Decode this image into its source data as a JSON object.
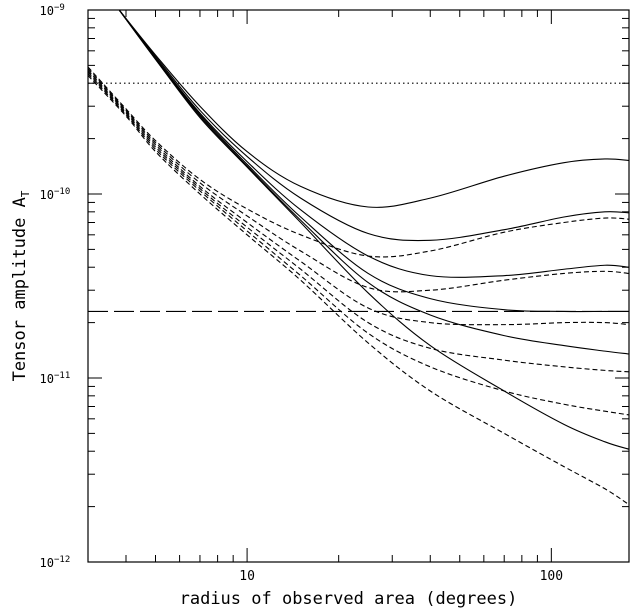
{
  "chart_data": {
    "type": "line",
    "title": "",
    "xlabel": "radius of observed area (degrees)",
    "ylabel": "Tensor amplitude A",
    "ylabel_subscript": "T",
    "xscale": "log",
    "yscale": "log",
    "xlim": [
      3,
      180
    ],
    "ylim": [
      1e-12,
      1e-09
    ],
    "grid": false,
    "legend": "none",
    "x_ticks": [
      {
        "value": 10,
        "label": "10"
      },
      {
        "value": 100,
        "label": "100"
      }
    ],
    "y_ticks": [
      {
        "value": 1e-12,
        "base": "10",
        "exp": "−12"
      },
      {
        "value": 1e-11,
        "base": "10",
        "exp": "−11"
      },
      {
        "value": 1e-10,
        "base": "10",
        "exp": "−10"
      },
      {
        "value": 1e-09,
        "base": "10",
        "exp": "−9"
      }
    ],
    "reference_lines": [
      {
        "style": "dotted",
        "y": 4e-10
      },
      {
        "style": "long-dashed",
        "y": 2.3e-11
      }
    ],
    "series": [
      {
        "style": "solid",
        "x": [
          3.8,
          5,
          7,
          10,
          15,
          25,
          40,
          70,
          110,
          150,
          180
        ],
        "y": [
          1e-09,
          5.7e-10,
          3e-10,
          1.7e-10,
          1.1e-10,
          8.5e-11,
          9.5e-11,
          1.25e-10,
          1.48e-10,
          1.55e-10,
          1.52e-10
        ]
      },
      {
        "style": "solid",
        "x": [
          3.8,
          5,
          7,
          10,
          15,
          25,
          40,
          70,
          110,
          150,
          180
        ],
        "y": [
          1e-09,
          5.6e-10,
          2.85e-10,
          1.6e-10,
          9.5e-11,
          6.1e-11,
          5.6e-11,
          6.4e-11,
          7.5e-11,
          8e-11,
          7.9e-11
        ]
      },
      {
        "style": "solid",
        "x": [
          3.8,
          5,
          7,
          10,
          15,
          25,
          40,
          70,
          110,
          150,
          180
        ],
        "y": [
          1e-09,
          5.5e-10,
          2.75e-10,
          1.5e-10,
          8.2e-11,
          4.6e-11,
          3.6e-11,
          3.6e-11,
          3.9e-11,
          4.1e-11,
          4e-11
        ]
      },
      {
        "style": "solid",
        "x": [
          3.8,
          5,
          7,
          10,
          15,
          25,
          40,
          70,
          110,
          150,
          180
        ],
        "y": [
          1e-09,
          5.45e-10,
          2.7e-10,
          1.45e-10,
          7.5e-11,
          3.7e-11,
          2.7e-11,
          2.35e-11,
          2.3e-11,
          2.3e-11,
          2.3e-11
        ]
      },
      {
        "style": "solid",
        "x": [
          3.8,
          5,
          7,
          10,
          15,
          25,
          40,
          70,
          110,
          150,
          180
        ],
        "y": [
          1e-09,
          5.4e-10,
          2.65e-10,
          1.42e-10,
          7.2e-11,
          3.3e-11,
          2.2e-11,
          1.7e-11,
          1.5e-11,
          1.4e-11,
          1.35e-11
        ]
      },
      {
        "style": "solid",
        "x": [
          3.8,
          5,
          7,
          10,
          15,
          25,
          40,
          70,
          110,
          150,
          180
        ],
        "y": [
          1e-09,
          5.4e-10,
          2.6e-10,
          1.4e-10,
          7e-11,
          2.9e-11,
          1.5e-11,
          8.5e-12,
          5.6e-12,
          4.5e-12,
          4.1e-12
        ]
      },
      {
        "style": "dashed",
        "x": [
          3,
          4,
          5,
          7,
          10,
          15,
          25,
          40,
          70,
          110,
          150,
          180
        ],
        "y": [
          4.9e-10,
          2.9e-10,
          1.95e-10,
          1.2e-10,
          8.3e-11,
          6e-11,
          4.6e-11,
          4.9e-11,
          6.2e-11,
          7e-11,
          7.4e-11,
          7.3e-11
        ]
      },
      {
        "style": "dashed",
        "x": [
          3,
          4,
          5,
          7,
          10,
          15,
          25,
          40,
          70,
          110,
          150,
          180
        ],
        "y": [
          4.8e-10,
          2.85e-10,
          1.9e-10,
          1.15e-10,
          7.6e-11,
          4.9e-11,
          3.1e-11,
          3e-11,
          3.4e-11,
          3.7e-11,
          3.8e-11,
          3.7e-11
        ]
      },
      {
        "style": "dashed",
        "x": [
          3,
          4,
          5,
          7,
          10,
          15,
          25,
          40,
          70,
          110,
          150,
          180
        ],
        "y": [
          4.7e-10,
          2.8e-10,
          1.85e-10,
          1.1e-10,
          7e-11,
          4.3e-11,
          2.4e-11,
          2e-11,
          1.95e-11,
          2e-11,
          2e-11,
          1.95e-11
        ]
      },
      {
        "style": "dashed",
        "x": [
          3,
          4,
          5,
          7,
          10,
          15,
          25,
          40,
          70,
          110,
          150,
          180
        ],
        "y": [
          4.6e-10,
          2.75e-10,
          1.8e-10,
          1.07e-10,
          6.6e-11,
          3.9e-11,
          2e-11,
          1.45e-11,
          1.25e-11,
          1.15e-11,
          1.1e-11,
          1.08e-11
        ]
      },
      {
        "style": "dashed",
        "x": [
          3,
          4,
          5,
          7,
          10,
          15,
          25,
          40,
          70,
          110,
          150,
          180
        ],
        "y": [
          4.5e-10,
          2.7e-10,
          1.75e-10,
          1.04e-10,
          6.3e-11,
          3.6e-11,
          1.75e-11,
          1.15e-11,
          8.5e-12,
          7.2e-12,
          6.6e-12,
          6.3e-12
        ]
      },
      {
        "style": "dashed",
        "x": [
          3,
          4,
          5,
          7,
          10,
          15,
          25,
          40,
          70,
          110,
          150,
          180
        ],
        "y": [
          4.4e-10,
          2.65e-10,
          1.7e-10,
          1e-10,
          6e-11,
          3.4e-11,
          1.55e-11,
          8.5e-12,
          5e-12,
          3.3e-12,
          2.5e-12,
          2.05e-12
        ]
      }
    ]
  }
}
